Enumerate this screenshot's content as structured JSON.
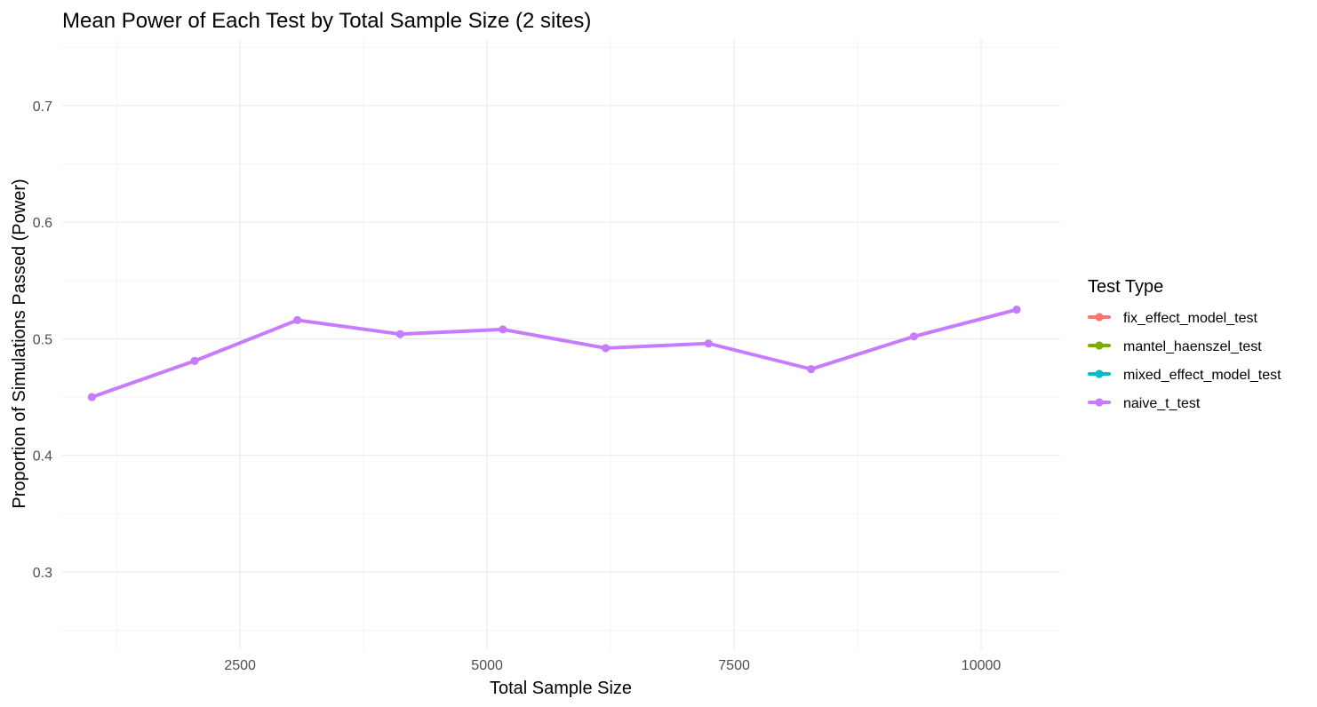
{
  "chart_data": {
    "type": "line",
    "title": "Mean Power of Each Test by Total Sample Size (2 sites)",
    "xlabel": "Total Sample Size",
    "ylabel": "Proportion of Simulations Passed (Power)",
    "xlim": [
      700,
      10800
    ],
    "ylim": [
      0.233,
      0.757
    ],
    "x_ticks": [
      2500,
      5000,
      7500,
      10000
    ],
    "x_minor_ticks": [
      1250,
      3750,
      6250,
      8750
    ],
    "y_ticks": [
      0.3,
      0.4,
      0.5,
      0.6,
      0.7
    ],
    "y_minor_ticks": [
      0.25,
      0.35,
      0.45,
      0.55,
      0.65,
      0.75
    ],
    "grid": true,
    "legend": {
      "title": "Test Type",
      "position": "right",
      "entries": [
        {
          "name": "fix_effect_model_test",
          "color": "#F8766D"
        },
        {
          "name": "mantel_haenszel_test",
          "color": "#7CAE00"
        },
        {
          "name": "mixed_effect_model_test",
          "color": "#00BFC4"
        },
        {
          "name": "naive_t_test",
          "color": "#C77CFF"
        }
      ]
    },
    "series": [
      {
        "name": "naive_t_test",
        "color": "#C77CFF",
        "x": [
          1000,
          2040,
          3080,
          4120,
          5160,
          6200,
          7240,
          8280,
          9320,
          10360
        ],
        "y": [
          0.45,
          0.481,
          0.516,
          0.504,
          0.508,
          0.492,
          0.496,
          0.474,
          0.502,
          0.525
        ]
      }
    ]
  }
}
